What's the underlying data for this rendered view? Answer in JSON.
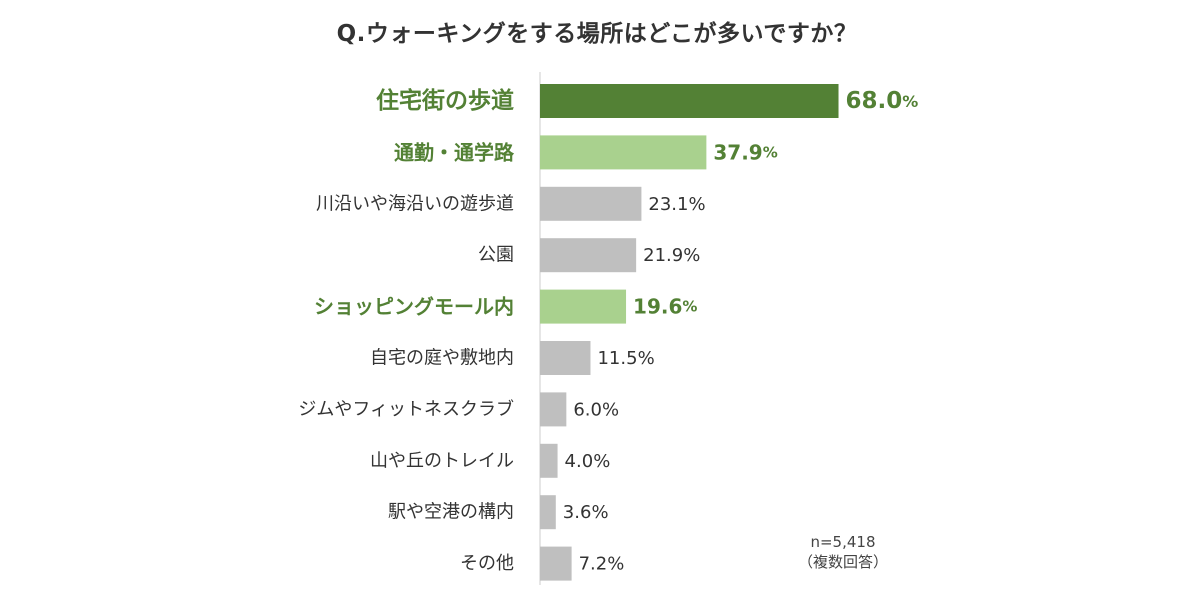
{
  "chart_data": {
    "type": "bar",
    "orientation": "horizontal",
    "title": "Q.ウォーキングをする場所はどこが多いですか？",
    "categories": [
      "住宅街の歩道",
      "通勤・通学路",
      "川沿いや海沿いの遊歩道",
      "公園",
      "ショッピングモール内",
      "自宅の庭や敷地内",
      "ジムやフィットネスクラブ",
      "山や丘のトレイル",
      "駅や空港の構内",
      "その他"
    ],
    "values": [
      68.0,
      37.9,
      23.1,
      21.9,
      19.6,
      11.5,
      6.0,
      4.0,
      3.6,
      7.2
    ],
    "value_labels": [
      "68.0",
      "37.9",
      "23.1",
      "21.9",
      "19.6",
      "11.5",
      "6.0",
      "4.0",
      "3.6",
      "7.2"
    ],
    "unit": "%",
    "highlight": [
      "primary",
      "secondary",
      "none",
      "none",
      "secondary",
      "none",
      "none",
      "none",
      "none",
      "none"
    ],
    "xlim": [
      0,
      100
    ],
    "xlabel": "",
    "ylabel": "",
    "grid": false,
    "colors": {
      "primary": "#538135",
      "secondary": "#a9d18e",
      "none": "#bfbfbf",
      "highlight_text": "#538135",
      "text": "#333333",
      "axis": "#cccccc"
    }
  },
  "note": {
    "sample_size": "n=5,418",
    "answer_type": "（複数回答）"
  }
}
